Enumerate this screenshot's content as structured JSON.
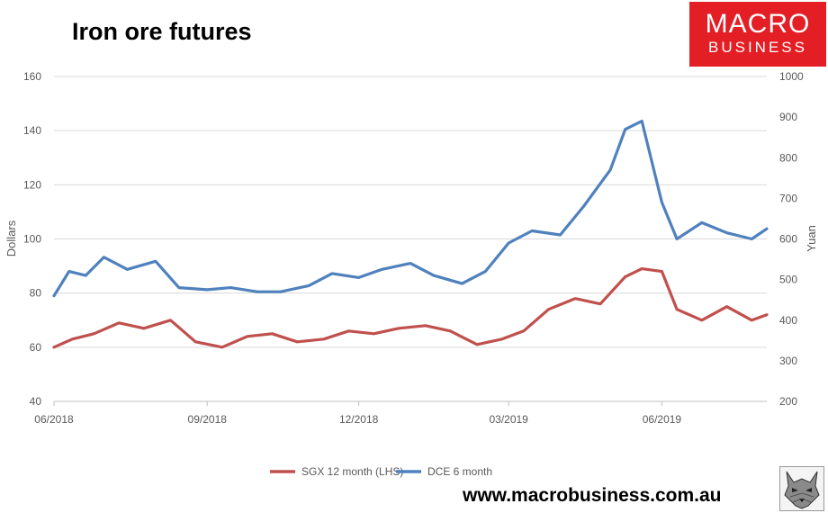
{
  "brand": {
    "logo_line1": "MACRO",
    "logo_line2": "BUSINESS",
    "website": "www.macrobusiness.com.au",
    "accent_color": "#e31e24"
  },
  "chart_data": {
    "type": "line",
    "title": "Iron ore futures",
    "x_ticks": [
      "06/2018",
      "09/2018",
      "12/2018",
      "03/2019",
      "06/2019"
    ],
    "x_range": [
      "2018-06-01",
      "2019-08-03"
    ],
    "y_left": {
      "label": "Dollars",
      "range": [
        40,
        160
      ],
      "ticks": [
        40,
        60,
        80,
        100,
        120,
        140,
        160
      ]
    },
    "y_right": {
      "label": "Yuan",
      "range": [
        200,
        1000
      ],
      "ticks": [
        200,
        300,
        400,
        500,
        600,
        700,
        800,
        900,
        1000
      ]
    },
    "grid": true,
    "legend_position": "bottom",
    "series": [
      {
        "name": "SGX 12 month (LHS)",
        "axis": "left",
        "color": "#c0504d",
        "x": [
          "2018-06-01",
          "2018-06-12",
          "2018-06-25",
          "2018-07-10",
          "2018-07-25",
          "2018-08-10",
          "2018-08-25",
          "2018-09-10",
          "2018-09-25",
          "2018-10-10",
          "2018-10-25",
          "2018-11-10",
          "2018-11-25",
          "2018-12-10",
          "2018-12-25",
          "2019-01-10",
          "2019-01-25",
          "2019-02-10",
          "2019-02-25",
          "2019-03-10",
          "2019-03-25",
          "2019-04-10",
          "2019-04-25",
          "2019-05-10",
          "2019-05-20",
          "2019-06-01",
          "2019-06-10",
          "2019-06-25",
          "2019-07-10",
          "2019-07-25",
          "2019-08-03"
        ],
        "values": [
          60,
          63,
          65,
          69,
          67,
          70,
          62,
          60,
          64,
          65,
          62,
          63,
          66,
          65,
          67,
          68,
          66,
          61,
          63,
          66,
          74,
          78,
          76,
          86,
          89,
          88,
          74,
          70,
          75,
          70,
          72
        ]
      },
      {
        "name": "DCE 6 month",
        "axis": "right",
        "color": "#4f81bd",
        "x": [
          "2018-06-01",
          "2018-06-10",
          "2018-06-20",
          "2018-07-01",
          "2018-07-15",
          "2018-08-01",
          "2018-08-15",
          "2018-09-01",
          "2018-09-15",
          "2018-10-01",
          "2018-10-15",
          "2018-11-01",
          "2018-11-15",
          "2018-12-01",
          "2018-12-15",
          "2019-01-01",
          "2019-01-15",
          "2019-02-01",
          "2019-02-15",
          "2019-03-01",
          "2019-03-15",
          "2019-04-01",
          "2019-04-15",
          "2019-05-01",
          "2019-05-10",
          "2019-05-20",
          "2019-06-01",
          "2019-06-10",
          "2019-06-25",
          "2019-07-10",
          "2019-07-25",
          "2019-08-03"
        ],
        "values": [
          460,
          520,
          510,
          555,
          525,
          545,
          480,
          475,
          480,
          470,
          470,
          485,
          515,
          505,
          525,
          540,
          510,
          490,
          520,
          590,
          620,
          610,
          680,
          770,
          870,
          890,
          690,
          600,
          640,
          615,
          600,
          625
        ]
      }
    ]
  }
}
